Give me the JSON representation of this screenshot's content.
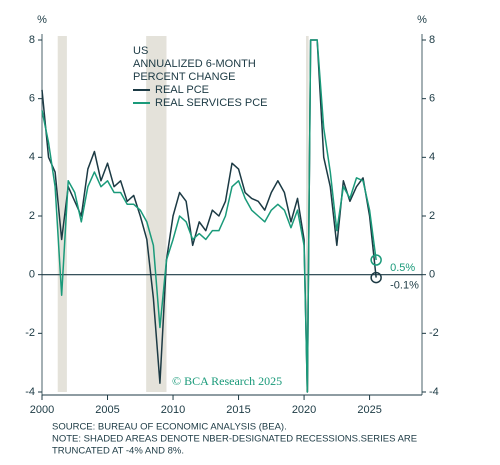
{
  "chart_data": {
    "type": "line",
    "title": [
      "US",
      "ANNUALIZED 6-MONTH",
      "PERCENT CHANGE"
    ],
    "ylabel": "%",
    "y2label": "%",
    "x": [
      2000,
      2000.5,
      2001,
      2001.5,
      2002,
      2002.5,
      2003,
      2003.5,
      2004,
      2004.5,
      2005,
      2005.5,
      2006,
      2006.5,
      2007,
      2007.5,
      2008,
      2008.5,
      2009,
      2009.5,
      2010,
      2010.5,
      2011,
      2011.5,
      2012,
      2012.5,
      2013,
      2013.5,
      2014,
      2014.5,
      2015,
      2015.5,
      2016,
      2016.5,
      2017,
      2017.5,
      2018,
      2018.5,
      2019,
      2019.5,
      2020,
      2020.25,
      2020.5,
      2021,
      2021.5,
      2022,
      2022.5,
      2023,
      2023.5,
      2024,
      2024.5,
      2025,
      2025.5
    ],
    "series": [
      {
        "name": "REAL PCE",
        "color": "#1c3a44",
        "end_label": "-0.1%",
        "values": [
          6.3,
          4.0,
          3.5,
          1.2,
          3.0,
          2.5,
          2.0,
          3.6,
          4.2,
          3.2,
          3.8,
          3.0,
          3.2,
          2.5,
          2.7,
          2.0,
          1.2,
          -0.8,
          -3.7,
          0.5,
          2.0,
          2.8,
          2.5,
          1.0,
          1.8,
          1.5,
          2.2,
          2.0,
          2.5,
          3.8,
          3.6,
          2.8,
          2.6,
          2.5,
          2.2,
          2.8,
          3.2,
          2.8,
          1.8,
          2.6,
          1.2,
          -4,
          8,
          8,
          4.0,
          3.0,
          1.0,
          3.2,
          2.5,
          3.0,
          3.3,
          2.0,
          -0.1
        ]
      },
      {
        "name": "REAL SERVICES PCE",
        "color": "#1a9a7a",
        "end_label": "0.5%",
        "values": [
          5.6,
          4.5,
          3.0,
          -0.7,
          3.2,
          2.8,
          1.8,
          3.0,
          3.5,
          3.0,
          3.2,
          2.8,
          2.8,
          2.4,
          2.4,
          2.2,
          1.8,
          1.0,
          -1.8,
          0.5,
          1.2,
          2.0,
          1.8,
          1.2,
          1.4,
          1.2,
          1.5,
          1.5,
          2.0,
          3.0,
          3.2,
          2.6,
          2.2,
          2.0,
          1.8,
          2.2,
          2.4,
          2.2,
          1.6,
          2.2,
          1.0,
          -4,
          8,
          8,
          5.0,
          3.5,
          1.5,
          3.0,
          2.6,
          3.3,
          3.2,
          2.2,
          0.5
        ]
      }
    ],
    "recessions": [
      [
        2001.2,
        2001.9
      ],
      [
        2007.95,
        2009.5
      ],
      [
        2020.15,
        2020.35
      ]
    ],
    "xlim": [
      2000,
      2029
    ],
    "xticks": [
      2000,
      2005,
      2010,
      2015,
      2020,
      2025
    ],
    "ylim": [
      -4,
      8
    ],
    "yticks": [
      -4,
      -2,
      0,
      2,
      4,
      6,
      8
    ],
    "y2lim": [
      -4,
      8
    ],
    "y2ticks": [
      -4,
      -2,
      0,
      2,
      4,
      6,
      8
    ],
    "watermark": "© BCA Research 2025",
    "notes": [
      "SOURCE: BUREAU OF ECONOMIC ANALYSIS (BEA).",
      "NOTE: SHADED AREAS DENOTE NBER-DESIGNATED RECESSIONS.SERIES ARE",
      "TRUNCATED AT -4% AND 8%."
    ]
  }
}
